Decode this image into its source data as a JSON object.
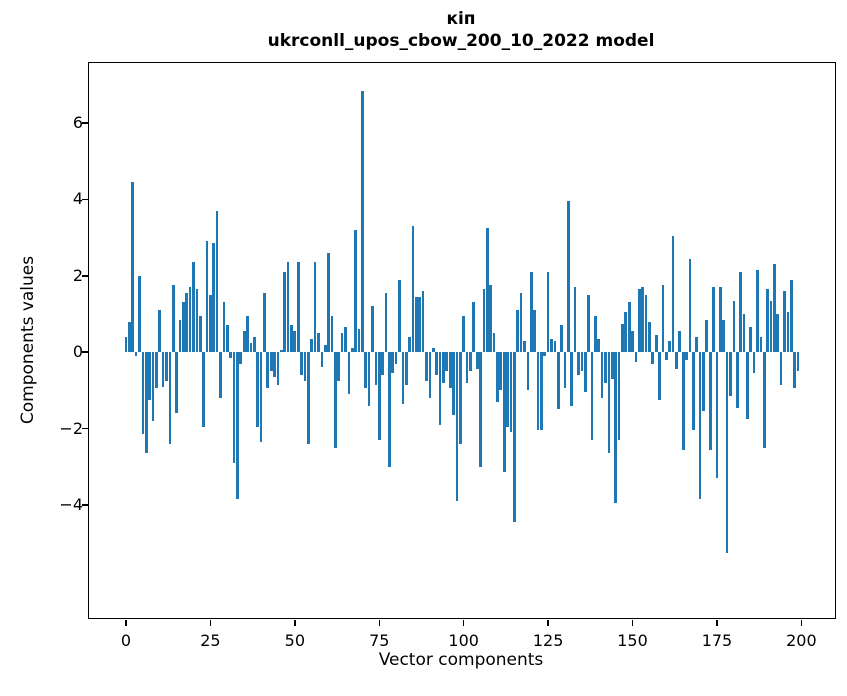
{
  "figure": {
    "background": "#ffffff",
    "bar_color": "#1f77b4",
    "axis_color": "#000000"
  },
  "title": {
    "line1": "кіп",
    "line2": "ukrconll_upos_cbow_200_10_2022 model"
  },
  "chart_data": {
    "type": "bar",
    "title": "кіп",
    "subtitle": "ukrconll_upos_cbow_200_10_2022 model",
    "xlabel": "Vector components",
    "ylabel": "Components values",
    "grid": false,
    "legend_position": "none",
    "xlim": [
      -10.95,
      209.95
    ],
    "ylim": [
      -6.96,
      7.57
    ],
    "x_ticks": [
      0,
      25,
      50,
      75,
      100,
      125,
      150,
      175,
      200
    ],
    "x_tick_labels": [
      "0",
      "25",
      "50",
      "75",
      "100",
      "125",
      "150",
      "175",
      "200"
    ],
    "y_ticks": [
      6,
      4,
      2,
      0,
      -2,
      -4
    ],
    "y_tick_labels": [
      "6",
      "4",
      "2",
      "0",
      "−2",
      "−4"
    ],
    "bar_width": 0.8,
    "values": [
      0.4,
      0.8,
      4.45,
      -0.1,
      2.0,
      -2.15,
      -2.65,
      -1.25,
      -1.8,
      -0.95,
      1.1,
      -0.9,
      -0.75,
      -2.4,
      1.75,
      -1.6,
      0.85,
      1.3,
      1.55,
      1.7,
      2.35,
      1.65,
      0.95,
      -1.95,
      2.9,
      1.5,
      2.85,
      3.7,
      -1.2,
      1.3,
      0.7,
      -0.15,
      -2.9,
      -3.85,
      -0.3,
      0.55,
      0.95,
      0.25,
      0.4,
      -1.95,
      -2.35,
      1.55,
      -0.95,
      -0.5,
      -0.65,
      -0.85,
      0.05,
      2.1,
      2.35,
      0.7,
      0.55,
      2.35,
      -0.6,
      -0.75,
      -2.4,
      0.35,
      2.35,
      0.5,
      -0.4,
      0.2,
      2.6,
      0.95,
      -2.5,
      -0.75,
      0.5,
      0.65,
      -1.1,
      0.1,
      3.2,
      0.6,
      6.85,
      -0.95,
      -1.4,
      1.2,
      -0.85,
      -2.3,
      -0.6,
      1.55,
      -3.0,
      -0.55,
      -0.3,
      1.9,
      -1.35,
      -0.85,
      0.4,
      3.3,
      1.45,
      1.45,
      1.6,
      -0.75,
      -1.2,
      0.1,
      -0.6,
      -1.9,
      -0.8,
      -0.5,
      -0.95,
      -1.65,
      -3.9,
      -2.4,
      0.95,
      -0.8,
      -0.5,
      1.3,
      -0.45,
      -3.0,
      1.65,
      3.25,
      1.75,
      0.5,
      -1.3,
      -1.0,
      -3.15,
      -1.95,
      -2.1,
      -4.45,
      1.1,
      1.55,
      0.3,
      -1.0,
      2.1,
      1.1,
      -2.05,
      -2.05,
      -0.1,
      2.1,
      0.35,
      0.3,
      -1.5,
      0.7,
      -0.95,
      3.95,
      -1.4,
      1.7,
      -0.6,
      -0.5,
      -1.05,
      1.5,
      -2.3,
      0.95,
      0.35,
      -1.2,
      -0.8,
      -2.65,
      -0.7,
      -3.95,
      -2.3,
      0.75,
      1.05,
      1.3,
      0.55,
      -0.25,
      1.65,
      1.7,
      1.5,
      0.8,
      -0.3,
      0.45,
      -1.25,
      1.75,
      -0.2,
      0.3,
      3.05,
      -0.45,
      0.55,
      -2.55,
      -0.2,
      2.45,
      -2.05,
      0.4,
      -3.85,
      -1.55,
      0.85,
      -2.55,
      1.7,
      -3.3,
      1.7,
      0.85,
      -5.25,
      -1.15,
      1.35,
      -1.45,
      2.1,
      1.0,
      -1.75,
      0.65,
      -0.55,
      2.15,
      0.4,
      -2.5,
      1.65,
      1.35,
      2.3,
      1.0,
      -0.85,
      1.6,
      1.05,
      1.9,
      -0.95,
      -0.5
    ]
  }
}
